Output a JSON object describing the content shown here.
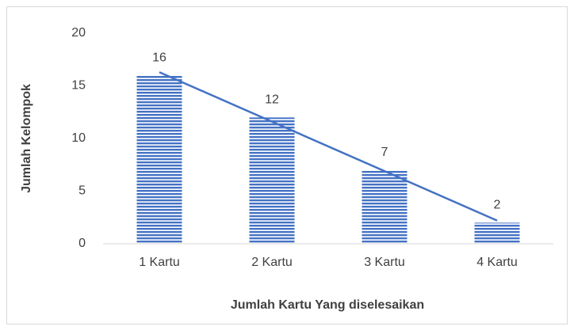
{
  "chart_data": {
    "type": "bar",
    "x_label": "Jumlah Kartu Yang diselesaikan",
    "y_label": "Jumlah Kelompok",
    "categories": [
      "1 Kartu",
      "2 Kartu",
      "3 Kartu",
      "4 Kartu"
    ],
    "values": [
      16,
      12,
      7,
      2
    ],
    "color": "#4472c4",
    "trendline": "linear",
    "ylim": [
      0,
      20
    ],
    "yticks": [
      0,
      5,
      10,
      15,
      20
    ],
    "grid": false
  }
}
